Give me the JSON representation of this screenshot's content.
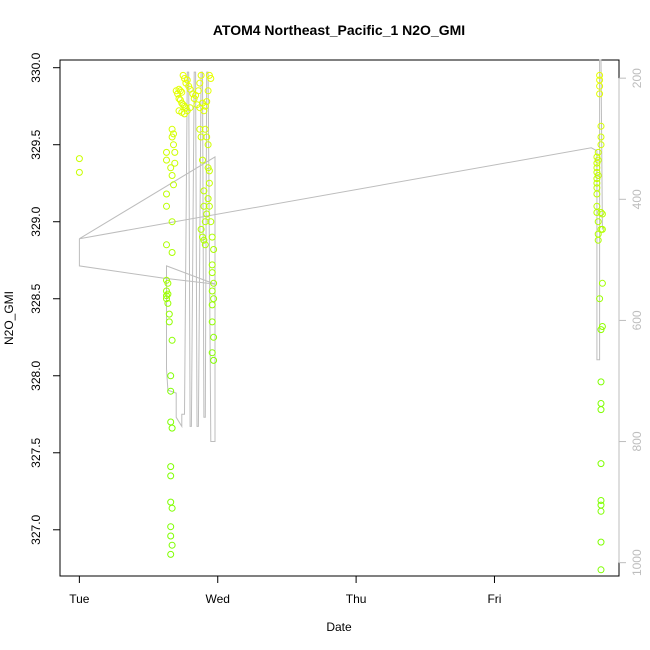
{
  "chart_data": {
    "type": "scatter",
    "title": "ATOM4 Northeast_Pacific_1 N2O_GMI",
    "xlabel": "Date",
    "ylabel": "N2O_GMI",
    "x_ticks": [
      {
        "label": "Tue",
        "day": 0
      },
      {
        "label": "Wed",
        "day": 1
      },
      {
        "label": "Thu",
        "day": 2
      },
      {
        "label": "Fri",
        "day": 3
      }
    ],
    "xlim_days": [
      -0.14,
      3.9
    ],
    "ylim": [
      326.7,
      330.05
    ],
    "y_ticks": [
      327.0,
      327.5,
      328.0,
      328.5,
      329.0,
      329.5,
      330.0
    ],
    "right_axis": {
      "label": "",
      "lim": [
        1022,
        170
      ],
      "ticks": [
        200,
        400,
        600,
        800,
        1000
      ],
      "color": "#bdbdbd"
    },
    "grid": false,
    "colors": {
      "points_low": "#7fff00",
      "points_high": "#e6ff00",
      "line": "#bdbdbd"
    },
    "series": [
      {
        "kind": "points",
        "points": [
          [
            0.0,
            329.41
          ],
          [
            0.0,
            329.32
          ],
          [
            0.63,
            329.45
          ],
          [
            0.63,
            329.4
          ],
          [
            0.63,
            329.18
          ],
          [
            0.63,
            329.1
          ],
          [
            0.63,
            328.85
          ],
          [
            0.63,
            328.62
          ],
          [
            0.63,
            328.55
          ],
          [
            0.63,
            328.52
          ],
          [
            0.63,
            328.5
          ],
          [
            0.64,
            328.6
          ],
          [
            0.64,
            328.53
          ],
          [
            0.64,
            328.47
          ],
          [
            0.65,
            328.4
          ],
          [
            0.65,
            328.35
          ],
          [
            0.66,
            328.0
          ],
          [
            0.66,
            327.9
          ],
          [
            0.66,
            327.7
          ],
          [
            0.67,
            327.66
          ],
          [
            0.66,
            327.41
          ],
          [
            0.66,
            327.35
          ],
          [
            0.66,
            327.18
          ],
          [
            0.67,
            327.14
          ],
          [
            0.66,
            327.02
          ],
          [
            0.66,
            326.96
          ],
          [
            0.67,
            326.9
          ],
          [
            0.66,
            326.84
          ],
          [
            0.66,
            329.35
          ],
          [
            0.67,
            329.3
          ],
          [
            0.67,
            329.0
          ],
          [
            0.67,
            328.8
          ],
          [
            0.67,
            328.23
          ],
          [
            0.68,
            329.24
          ],
          [
            0.67,
            329.55
          ],
          [
            0.67,
            329.6
          ],
          [
            0.68,
            329.5
          ],
          [
            0.68,
            329.57
          ],
          [
            0.69,
            329.45
          ],
          [
            0.69,
            329.38
          ],
          [
            0.7,
            329.85
          ],
          [
            0.71,
            329.83
          ],
          [
            0.72,
            329.86
          ],
          [
            0.73,
            329.85
          ],
          [
            0.74,
            329.84
          ],
          [
            0.72,
            329.8
          ],
          [
            0.73,
            329.79
          ],
          [
            0.74,
            329.77
          ],
          [
            0.75,
            329.76
          ],
          [
            0.76,
            329.75
          ],
          [
            0.77,
            329.74
          ],
          [
            0.72,
            329.72
          ],
          [
            0.74,
            329.71
          ],
          [
            0.76,
            329.7
          ],
          [
            0.78,
            329.72
          ],
          [
            0.8,
            329.74
          ],
          [
            0.75,
            329.95
          ],
          [
            0.76,
            329.93
          ],
          [
            0.77,
            329.9
          ],
          [
            0.78,
            329.92
          ],
          [
            0.79,
            329.88
          ],
          [
            0.8,
            329.86
          ],
          [
            0.82,
            329.83
          ],
          [
            0.83,
            329.8
          ],
          [
            0.84,
            329.82
          ],
          [
            0.86,
            329.85
          ],
          [
            0.87,
            329.9
          ],
          [
            0.88,
            329.95
          ],
          [
            0.85,
            329.76
          ],
          [
            0.87,
            329.74
          ],
          [
            0.89,
            329.77
          ],
          [
            0.9,
            329.72
          ],
          [
            0.91,
            329.75
          ],
          [
            0.92,
            329.78
          ],
          [
            0.93,
            329.85
          ],
          [
            0.94,
            329.95
          ],
          [
            0.95,
            329.93
          ],
          [
            0.87,
            329.6
          ],
          [
            0.88,
            329.55
          ],
          [
            0.89,
            329.4
          ],
          [
            0.9,
            329.2
          ],
          [
            0.9,
            329.1
          ],
          [
            0.91,
            329.0
          ],
          [
            0.88,
            328.95
          ],
          [
            0.89,
            328.9
          ],
          [
            0.9,
            328.88
          ],
          [
            0.91,
            328.85
          ],
          [
            0.92,
            329.05
          ],
          [
            0.91,
            329.6
          ],
          [
            0.92,
            329.55
          ],
          [
            0.93,
            329.5
          ],
          [
            0.93,
            329.35
          ],
          [
            0.94,
            329.33
          ],
          [
            0.94,
            329.25
          ],
          [
            0.93,
            329.15
          ],
          [
            0.94,
            329.1
          ],
          [
            0.95,
            329.0
          ],
          [
            0.96,
            328.9
          ],
          [
            0.97,
            328.82
          ],
          [
            0.96,
            328.72
          ],
          [
            0.96,
            328.67
          ],
          [
            0.97,
            328.6
          ],
          [
            0.96,
            328.55
          ],
          [
            0.97,
            328.5
          ],
          [
            0.96,
            328.46
          ],
          [
            0.96,
            328.35
          ],
          [
            0.97,
            328.25
          ],
          [
            0.96,
            328.15
          ],
          [
            0.97,
            328.1
          ],
          [
            3.74,
            329.42
          ],
          [
            3.74,
            329.38
          ],
          [
            3.74,
            329.35
          ],
          [
            3.74,
            329.32
          ],
          [
            3.74,
            329.28
          ],
          [
            3.74,
            329.25
          ],
          [
            3.74,
            329.22
          ],
          [
            3.74,
            329.18
          ],
          [
            3.74,
            329.1
          ],
          [
            3.74,
            329.06
          ],
          [
            3.75,
            329.45
          ],
          [
            3.75,
            329.4
          ],
          [
            3.75,
            329.3
          ],
          [
            3.75,
            329.0
          ],
          [
            3.75,
            328.92
          ],
          [
            3.75,
            328.88
          ],
          [
            3.76,
            329.95
          ],
          [
            3.76,
            329.92
          ],
          [
            3.77,
            329.5
          ],
          [
            3.77,
            329.55
          ],
          [
            3.77,
            329.62
          ],
          [
            3.77,
            329.06
          ],
          [
            3.77,
            328.95
          ],
          [
            3.76,
            329.88
          ],
          [
            3.76,
            329.83
          ],
          [
            3.78,
            329.05
          ],
          [
            3.78,
            328.95
          ],
          [
            3.76,
            328.5
          ],
          [
            3.77,
            328.3
          ],
          [
            3.77,
            327.96
          ],
          [
            3.77,
            327.82
          ],
          [
            3.77,
            327.78
          ],
          [
            3.77,
            327.43
          ],
          [
            3.77,
            327.19
          ],
          [
            3.77,
            327.16
          ],
          [
            3.77,
            327.12
          ],
          [
            3.77,
            326.92
          ],
          [
            3.77,
            326.74
          ],
          [
            3.78,
            328.6
          ],
          [
            3.78,
            328.32
          ]
        ]
      },
      {
        "kind": "line",
        "axis": "right",
        "points": [
          [
            0.0,
            465
          ],
          [
            0.0,
            510
          ],
          [
            0.6,
            530
          ],
          [
            0.98,
            540
          ],
          [
            0.63,
            510
          ],
          [
            0.63,
            680
          ],
          [
            0.64,
            715
          ],
          [
            0.7,
            720
          ],
          [
            0.7,
            760
          ],
          [
            0.74,
            775
          ],
          [
            0.74,
            755
          ],
          [
            0.76,
            755
          ],
          [
            0.78,
            190
          ],
          [
            0.79,
            190
          ],
          [
            0.8,
            775
          ],
          [
            0.81,
            775
          ],
          [
            0.83,
            190
          ],
          [
            0.84,
            190
          ],
          [
            0.85,
            775
          ],
          [
            0.86,
            775
          ],
          [
            0.88,
            190
          ],
          [
            0.89,
            190
          ],
          [
            0.9,
            760
          ],
          [
            0.91,
            760
          ],
          [
            0.92,
            190
          ],
          [
            0.93,
            190
          ],
          [
            0.95,
            800
          ],
          [
            0.98,
            800
          ],
          [
            0.98,
            330
          ],
          [
            0.0,
            465
          ],
          [
            3.7,
            315
          ],
          [
            3.74,
            320
          ],
          [
            3.74,
            665
          ],
          [
            3.76,
            665
          ],
          [
            3.76,
            170
          ],
          [
            3.77,
            170
          ],
          [
            3.78,
            450
          ]
        ]
      }
    ]
  }
}
